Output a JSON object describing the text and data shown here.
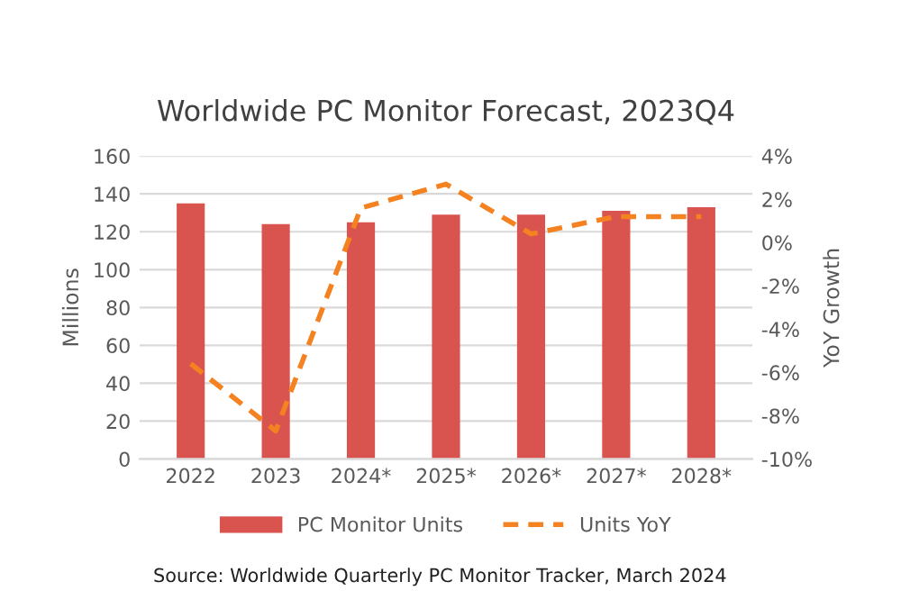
{
  "chart_data": {
    "type": "bar",
    "title": "Worldwide PC Monitor Forecast, 2023Q4",
    "ylabel": "Millions",
    "y2label": "YoY Growth",
    "categories": [
      "2022",
      "2023",
      "2024*",
      "2025*",
      "2026*",
      "2027*",
      "2028*"
    ],
    "series": [
      {
        "name": "PC Monitor Units",
        "color": "#d9534f",
        "values": [
          135,
          124,
          125,
          129,
          129,
          131,
          133
        ]
      },
      {
        "name": "Units YoY",
        "type": "line",
        "axis": "y2",
        "color": "#f58220",
        "line_style": "dashed",
        "marker": "none",
        "values": [
          -5.6,
          -8.7,
          1.6,
          2.7,
          0.4,
          1.2,
          1.2
        ]
      }
    ],
    "ylim": [
      0,
      160
    ],
    "yticks": [
      0,
      20,
      40,
      60,
      80,
      100,
      120,
      140,
      160
    ],
    "y2lim": [
      -10,
      4
    ],
    "y2ticks": [
      {
        "value": -10,
        "label": "-10%"
      },
      {
        "value": -8,
        "label": "-8%"
      },
      {
        "value": -6,
        "label": "-6%"
      },
      {
        "value": -4,
        "label": "-4%"
      },
      {
        "value": -2,
        "label": "-2%"
      },
      {
        "value": 0,
        "label": "0%"
      },
      {
        "value": 2,
        "label": "2%"
      },
      {
        "value": 4,
        "label": "4%"
      }
    ],
    "grid": "y",
    "legend": "bottom",
    "annotations": [
      "Source: Worldwide Quarterly PC Monitor Tracker, March 2024"
    ]
  }
}
